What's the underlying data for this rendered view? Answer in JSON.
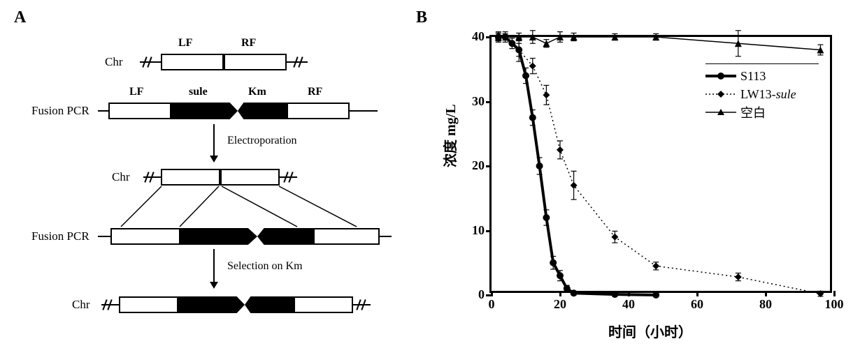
{
  "panelA": {
    "label": "A",
    "rows": {
      "chr1": {
        "label": "Chr"
      },
      "fusion1": {
        "label": "Fusion PCR"
      },
      "chr2": {
        "label": "Chr"
      },
      "fusion2": {
        "label": "Fusion PCR"
      },
      "chr3": {
        "label": "Chr"
      }
    },
    "box_labels": {
      "lf": "LF",
      "rf": "RF",
      "sule": "sule",
      "km": "Km"
    },
    "steps": {
      "electroporation": "Electroporation",
      "selection": "Selection on Km"
    },
    "colors": {
      "box_border": "#000000",
      "box_fill": "#ffffff",
      "seg_fill": "#000000",
      "wire": "#000000",
      "text": "#000000"
    },
    "layout": {
      "row_y": {
        "chr1": 30,
        "fusion1": 100,
        "chr2": 210,
        "fusion2": 280,
        "chr3": 400
      },
      "box_widths": {
        "lf": 90,
        "rf": 90,
        "sule": 95,
        "km": 70
      }
    }
  },
  "panelB": {
    "label": "B",
    "type": "line",
    "xlabel": "时间（小时）",
    "ylabel": "浓度 mg/L",
    "xlim": [
      0,
      100
    ],
    "ylim": [
      0,
      40
    ],
    "xtick_step": 20,
    "ytick_step": 10,
    "axis_color": "#000000",
    "background_color": "#ffffff",
    "title_fontsize": 20,
    "tick_fontsize": 18,
    "line_width_thick": 4,
    "line_width_thin": 1.5,
    "marker_size": 5,
    "series": [
      {
        "name": "S113",
        "color": "#000000",
        "line_width": 4,
        "marker": "circle",
        "dash": "none",
        "data": [
          {
            "x": 2,
            "y": 40,
            "err": 0.6
          },
          {
            "x": 4,
            "y": 40,
            "err": 0.5
          },
          {
            "x": 6,
            "y": 39,
            "err": 0.8
          },
          {
            "x": 8,
            "y": 38,
            "err": 1.0
          },
          {
            "x": 10,
            "y": 34,
            "err": 1.2
          },
          {
            "x": 12,
            "y": 27.5,
            "err": 1.2
          },
          {
            "x": 14,
            "y": 20,
            "err": 1.3
          },
          {
            "x": 16,
            "y": 12,
            "err": 1.2
          },
          {
            "x": 18,
            "y": 5,
            "err": 1.0
          },
          {
            "x": 20,
            "y": 3,
            "err": 0.8
          },
          {
            "x": 22,
            "y": 1,
            "err": 0.5
          },
          {
            "x": 24,
            "y": 0.3,
            "err": 0.3
          },
          {
            "x": 36,
            "y": 0.1,
            "err": 0.2
          },
          {
            "x": 48,
            "y": 0,
            "err": 0.1
          }
        ]
      },
      {
        "name": "LW13-sule",
        "color": "#000000",
        "line_width": 1.5,
        "marker": "diamond",
        "dash": "dot",
        "data": [
          {
            "x": 2,
            "y": 40,
            "err": 0.6
          },
          {
            "x": 4,
            "y": 40,
            "err": 0.8
          },
          {
            "x": 8,
            "y": 38,
            "err": 1.8
          },
          {
            "x": 12,
            "y": 35.5,
            "err": 1.2
          },
          {
            "x": 16,
            "y": 31,
            "err": 1.5
          },
          {
            "x": 20,
            "y": 22.5,
            "err": 1.4
          },
          {
            "x": 24,
            "y": 17,
            "err": 2.2
          },
          {
            "x": 36,
            "y": 9,
            "err": 0.9
          },
          {
            "x": 48,
            "y": 4.5,
            "err": 0.6
          },
          {
            "x": 72,
            "y": 2.8,
            "err": 0.6
          },
          {
            "x": 96,
            "y": 0.2,
            "err": 0.4
          }
        ]
      },
      {
        "name": "空白",
        "color": "#000000",
        "line_width": 1.5,
        "marker": "triangle",
        "dash": "none",
        "data": [
          {
            "x": 2,
            "y": 40,
            "err": 0.8
          },
          {
            "x": 8,
            "y": 40,
            "err": 0.6
          },
          {
            "x": 12,
            "y": 40,
            "err": 1.0
          },
          {
            "x": 16,
            "y": 39,
            "err": 0.6
          },
          {
            "x": 20,
            "y": 40,
            "err": 0.8
          },
          {
            "x": 24,
            "y": 40,
            "err": 0.6
          },
          {
            "x": 36,
            "y": 40,
            "err": 0.5
          },
          {
            "x": 48,
            "y": 40,
            "err": 0.5
          },
          {
            "x": 72,
            "y": 39,
            "err": 2.0
          },
          {
            "x": 96,
            "y": 38,
            "err": 0.8
          }
        ]
      }
    ],
    "legend": {
      "position": "top-right",
      "items": [
        "S113",
        "LW13-sule",
        "空白"
      ]
    }
  }
}
